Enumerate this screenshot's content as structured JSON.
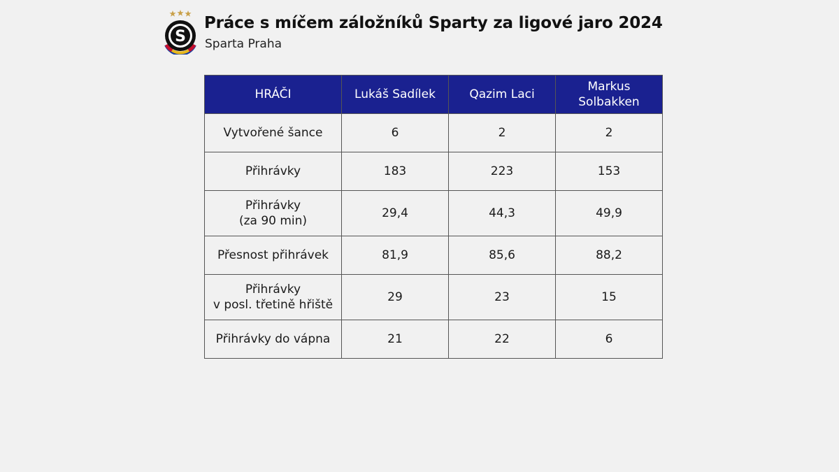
{
  "header": {
    "title": "Práce s míčem záložníků Sparty za ligové jaro 2024",
    "subtitle": "Sparta Praha",
    "logo_letter": "S"
  },
  "table": {
    "columns": [
      "HRÁČI",
      "Lukáš Sadílek",
      "Qazim Laci",
      "Markus\nSolbakken"
    ],
    "rows": [
      {
        "label": "Vytvořené šance",
        "values": [
          "6",
          "2",
          "2"
        ]
      },
      {
        "label": "Přihrávky",
        "values": [
          "183",
          "223",
          "153"
        ]
      },
      {
        "label": "Přihrávky\n(za 90 min)",
        "values": [
          "29,4",
          "44,3",
          "49,9"
        ]
      },
      {
        "label": "Přesnost přihrávek",
        "values": [
          "81,9",
          "85,6",
          "88,2"
        ]
      },
      {
        "label": "Přihrávky\nv posl. třetině hřiště",
        "values": [
          "29",
          "23",
          "15"
        ]
      },
      {
        "label": "Přihrávky do vápna",
        "values": [
          "21",
          "22",
          "6"
        ]
      }
    ]
  },
  "colors": {
    "header_bg": "#1a2190",
    "page_bg": "#f1f1f1",
    "border": "#555555",
    "star": "#c9a14a"
  }
}
